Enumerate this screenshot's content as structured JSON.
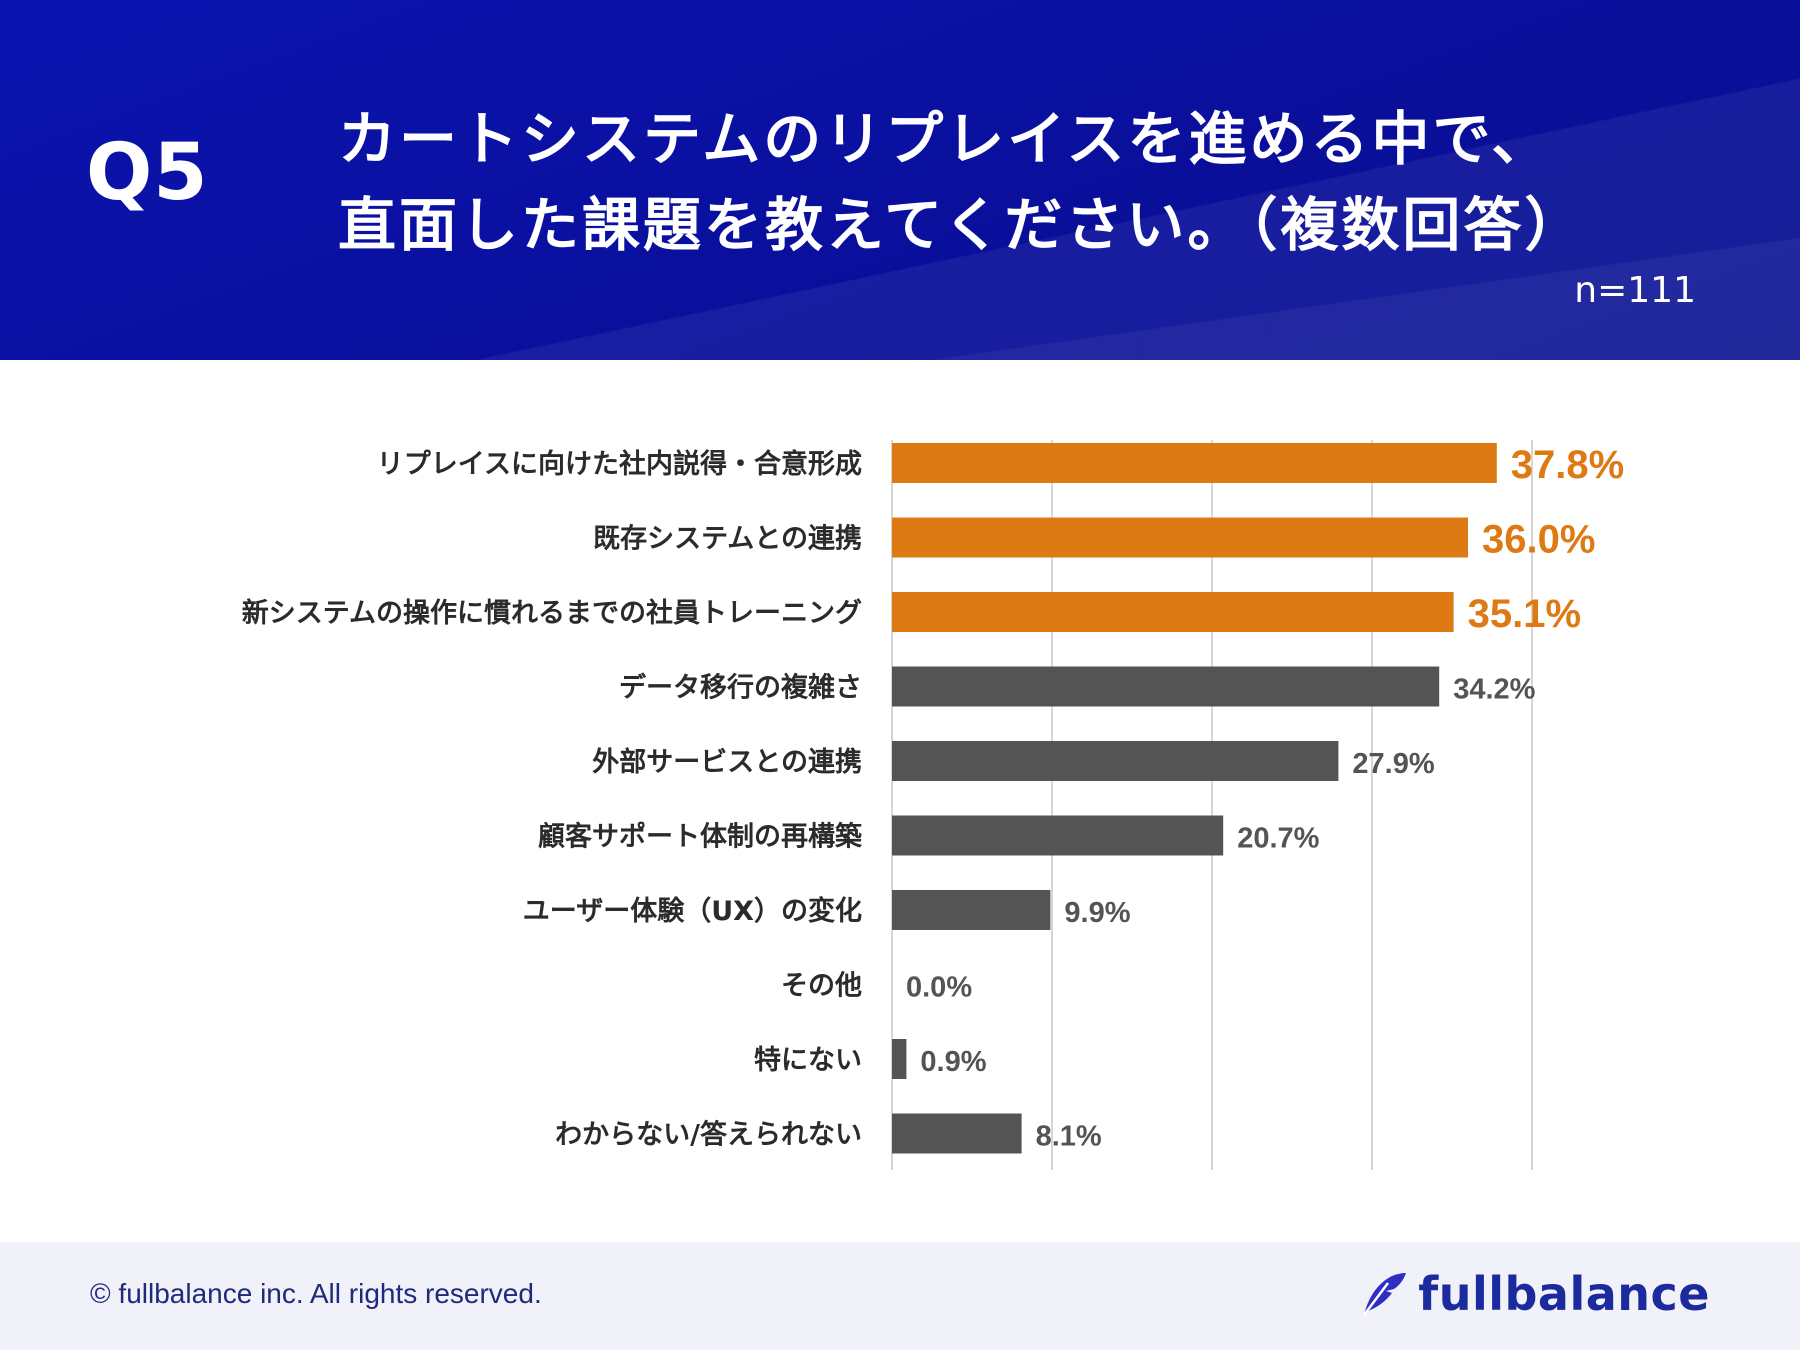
{
  "header": {
    "question_number": "Q5",
    "title_line1": "カートシステムのリプレイスを進める中で、",
    "title_line2": "直面した課題を教えてください。（複数回答）",
    "sample_size": "n=111"
  },
  "chart_data": {
    "type": "bar",
    "orientation": "horizontal",
    "title": "カートシステムのリプレイスを進める中で、直面した課題を教えてください。（複数回答）",
    "xlim": [
      0,
      40
    ],
    "grid": true,
    "value_suffix": "%",
    "categories": [
      "リプレイスに向けた社内説得・合意形成",
      "既存システムとの連携",
      "新システムの操作に慣れるまでの社員トレーニング",
      "データ移行の複雑さ",
      "外部サービスとの連携",
      "顧客サポート体制の再構築",
      "ユーザー体験（UX）の変化",
      "その他",
      "特にない",
      "わからない/答えられない"
    ],
    "values": [
      37.8,
      36.0,
      35.1,
      34.2,
      27.9,
      20.7,
      9.9,
      0.0,
      0.9,
      8.1
    ],
    "labels": [
      "37.8%",
      "36.0%",
      "35.1%",
      "34.2%",
      "27.9%",
      "20.7%",
      "9.9%",
      "0.0%",
      "0.9%",
      "8.1%"
    ],
    "highlight_top": 3,
    "colors": {
      "highlight": "#dd7a14",
      "default": "#545454",
      "grid": "#c8c8c8"
    }
  },
  "footer": {
    "copyright": "© fullbalance inc. All rights reserved.",
    "brand": "fullbalance",
    "brand_icon": "feather-icon"
  }
}
